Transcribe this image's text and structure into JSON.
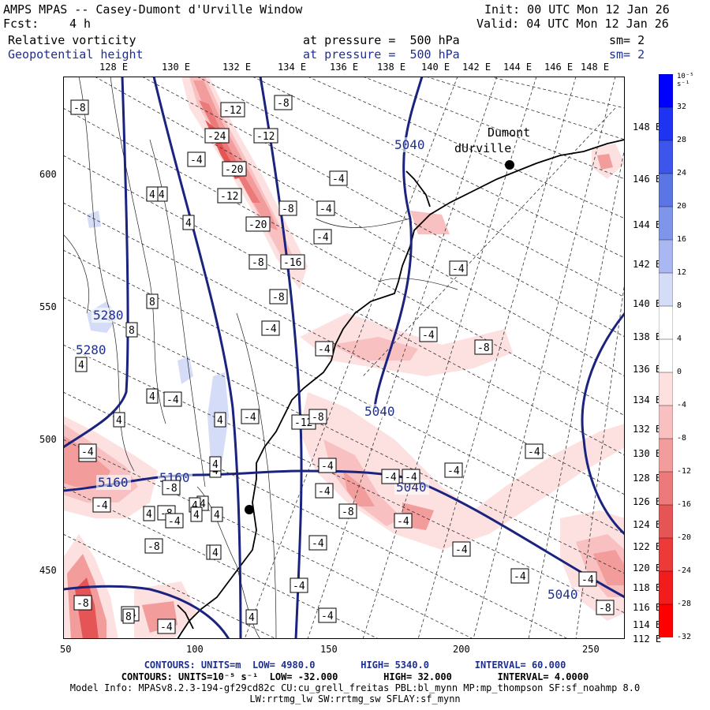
{
  "header": {
    "model_line": "AMPS MPAS -- Casey-Dumont d'Urville Window",
    "fcst_label": "Fcst:",
    "fcst_value": "4 h",
    "init": "Init: 00 UTC Mon 12 Jan 26",
    "valid": "Valid: 04 UTC Mon 12 Jan 26",
    "field1_name": "Relative vorticity",
    "field1_level": "at pressure =  500 hPa",
    "field1_sm": "sm= 2",
    "field2_name": "Geopotential height",
    "field2_level": "at pressure =  500 hPa",
    "field2_sm": "sm= 2"
  },
  "top_lon_labels": [
    "128 E",
    "130 E",
    "132 E",
    "134 E",
    "136 E",
    "138 E",
    "140 E",
    "142 E",
    "144 E",
    "146 E",
    "148 E"
  ],
  "right_lon_labels": [
    "148 E",
    "146 E",
    "144 E",
    "142 E",
    "140 E",
    "138 E",
    "136 E",
    "134 E",
    "132 E",
    "130 E",
    "128 E",
    "126 E",
    "124 E",
    "122 E",
    "120 E",
    "118 E",
    "116 E",
    "114 E",
    "112 E"
  ],
  "x_ticks": [
    "50",
    "100",
    "150",
    "200",
    "250"
  ],
  "y_ticks": [
    "600",
    "550",
    "500",
    "450"
  ],
  "places": [
    {
      "name_line1": "Dumont",
      "name_line2": "dUrville"
    }
  ],
  "height_contour_labels": [
    "5040",
    "5280",
    "5280",
    "5160",
    "5160",
    "5040",
    "5040",
    "5040"
  ],
  "vorticity_labels": [
    "-8",
    "-12",
    "-8",
    "-24",
    "-12",
    "-4",
    "-20",
    "-12",
    "-4",
    "-4",
    "-8",
    "-20",
    "-4",
    "-8",
    "-16",
    "-4",
    "-8",
    "-4",
    "-4",
    "-4",
    "-4",
    "-8",
    "-4",
    "-4",
    "-4",
    "-4",
    "-8",
    "-4",
    "-8",
    "-8",
    "-8",
    "-4",
    "-4",
    "-4",
    "-4",
    "-4",
    "-4",
    "-8",
    "-4",
    "-4",
    "-4",
    "-8",
    "-4",
    "-4",
    "-4",
    "-12",
    "-4",
    "-8",
    "-4",
    "-4",
    "-4",
    "4",
    "4",
    "4",
    "8",
    "8",
    "4",
    "4",
    "4",
    "4",
    "4",
    "4",
    "4",
    "8",
    "4",
    "4",
    "4",
    "4",
    "4",
    "4",
    "4"
  ],
  "colorbar": {
    "unit": "10⁻⁵ s⁻¹",
    "labels": [
      "32",
      "28",
      "24",
      "20",
      "16",
      "12",
      "8",
      "4",
      "0",
      "-4",
      "-8",
      "-12",
      "-16",
      "-20",
      "-24",
      "-28",
      "-32"
    ],
    "colors": [
      "#0000ff",
      "#1f33f3",
      "#3d55ea",
      "#5c75e4",
      "#7f95ea",
      "#a9b8f3",
      "#d5dcf8",
      "#ffffff",
      "#ffffff",
      "#fde0e0",
      "#f8c0c0",
      "#f29c9c",
      "#ec7a7a",
      "#e65555",
      "#ec3a3a",
      "#f31c1c",
      "#ff0000"
    ]
  },
  "footer": {
    "line1": "CONTOURS: UNITS=m  LOW= 4980.0        HIGH= 5340.0        INTERVAL= 60.000",
    "line2": "CONTOURS: UNITS=10⁻⁵ s⁻¹  LOW= -32.000        HIGH= 32.000        INTERVAL= 4.0000",
    "line3": "Model Info: MPASv8.2.3-194-gf29cd82c CU:cu_grell_freitas PBL:bl_mynn MP:mp_thompson SF:sf_noahmp 8.0",
    "line4": "LW:rrtmg_lw SW:rrtmg_sw SFLAY:sf_mynn"
  }
}
